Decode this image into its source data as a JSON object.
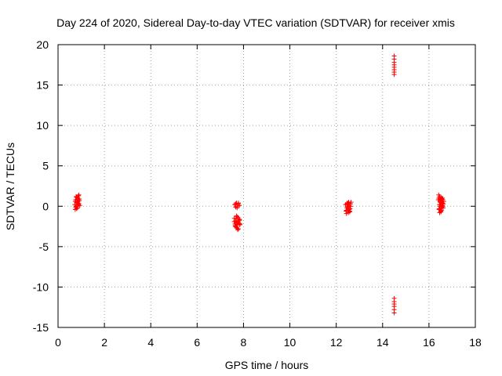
{
  "chart_data": {
    "type": "scatter",
    "title": "Day 224 of 2020, Sidereal Day-to-day VTEC variation (SDTVAR) for receiver xmis",
    "xlabel": "GPS time / hours",
    "ylabel": "SDTVAR / TECUs",
    "xlim": [
      0,
      18
    ],
    "ylim": [
      -15,
      20
    ],
    "xticks": [
      0,
      2,
      4,
      6,
      8,
      10,
      12,
      14,
      16,
      18
    ],
    "yticks": [
      -15,
      -10,
      -5,
      0,
      5,
      10,
      15,
      20
    ],
    "grid": true,
    "marker": "+",
    "color": "#ff0000",
    "series": [
      {
        "name": "SDTVAR",
        "x": [
          0.72,
          0.74,
          0.76,
          0.78,
          0.8,
          0.82,
          0.84,
          0.86,
          0.88,
          0.9,
          0.92,
          0.94,
          0.76,
          0.8,
          0.84,
          0.88,
          0.92,
          0.74,
          0.78,
          0.82,
          0.86,
          0.9,
          0.8,
          0.86,
          7.6,
          7.63,
          7.66,
          7.69,
          7.72,
          7.75,
          7.78,
          7.81,
          7.84,
          7.62,
          7.66,
          7.7,
          7.74,
          7.78,
          7.82,
          7.64,
          7.68,
          7.72,
          7.76,
          7.8,
          7.84,
          7.6,
          7.65,
          7.7,
          7.75,
          7.8,
          7.85,
          7.66,
          7.72,
          7.78,
          7.68,
          7.74,
          12.4,
          12.44,
          12.48,
          12.52,
          12.56,
          12.6,
          12.64,
          12.42,
          12.46,
          12.5,
          12.54,
          12.58,
          12.62,
          12.44,
          12.5,
          12.56,
          12.62,
          12.46,
          12.52,
          12.58,
          12.48,
          12.55,
          14.5,
          14.5,
          14.5,
          14.5,
          14.5,
          14.5,
          14.5,
          14.5,
          14.5,
          14.5,
          14.5,
          14.5,
          14.5,
          14.5,
          16.4,
          16.43,
          16.46,
          16.49,
          16.52,
          16.55,
          16.58,
          16.61,
          16.64,
          16.42,
          16.46,
          16.5,
          16.54,
          16.58,
          16.62,
          16.44,
          16.48,
          16.52,
          16.56,
          16.6,
          16.45,
          16.5,
          16.55,
          16.6,
          16.42,
          16.48,
          16.54,
          16.6,
          16.46,
          16.52,
          16.58
        ],
        "y": [
          0.2,
          -0.4,
          0.8,
          0.0,
          1.1,
          0.4,
          -0.2,
          0.6,
          1.3,
          0.3,
          0.9,
          0.1,
          -0.1,
          0.5,
          1.0,
          0.2,
          0.7,
          0.6,
          1.2,
          0.0,
          0.4,
          1.4,
          -0.3,
          0.8,
          -1.5,
          -2.2,
          -1.8,
          -2.6,
          -1.3,
          -2.0,
          -2.8,
          -1.6,
          -2.3,
          0.2,
          -0.1,
          0.4,
          0.0,
          0.3,
          0.1,
          -2.4,
          -1.9,
          -2.7,
          -1.4,
          -2.1,
          -1.7,
          -1.9,
          -2.5,
          -1.2,
          -2.9,
          -1.8,
          -2.2,
          0.3,
          -0.2,
          0.4,
          -1.6,
          -2.3,
          0.2,
          -0.5,
          0.4,
          -0.8,
          0.1,
          -0.3,
          0.5,
          -0.6,
          0.3,
          -0.1,
          0.5,
          -0.7,
          0.0,
          -0.9,
          0.2,
          -0.4,
          0.3,
          -0.2,
          0.4,
          -0.6,
          0.0,
          -0.3,
          18.6,
          18.2,
          17.8,
          17.5,
          17.2,
          16.9,
          16.6,
          16.3,
          -11.4,
          -11.8,
          -12.1,
          -12.4,
          -12.8,
          -13.2,
          0.8,
          -0.4,
          1.2,
          0.2,
          -0.7,
          0.9,
          0.4,
          -0.2,
          0.6,
          1.4,
          0.0,
          0.7,
          -0.5,
          1.0,
          0.3,
          -0.3,
          0.5,
          1.1,
          -0.1,
          0.8,
          0.2,
          -0.6,
          0.4,
          0.0,
          1.0,
          0.6,
          -0.2,
          0.3,
          -0.8,
          0.9,
          0.1
        ]
      }
    ]
  }
}
